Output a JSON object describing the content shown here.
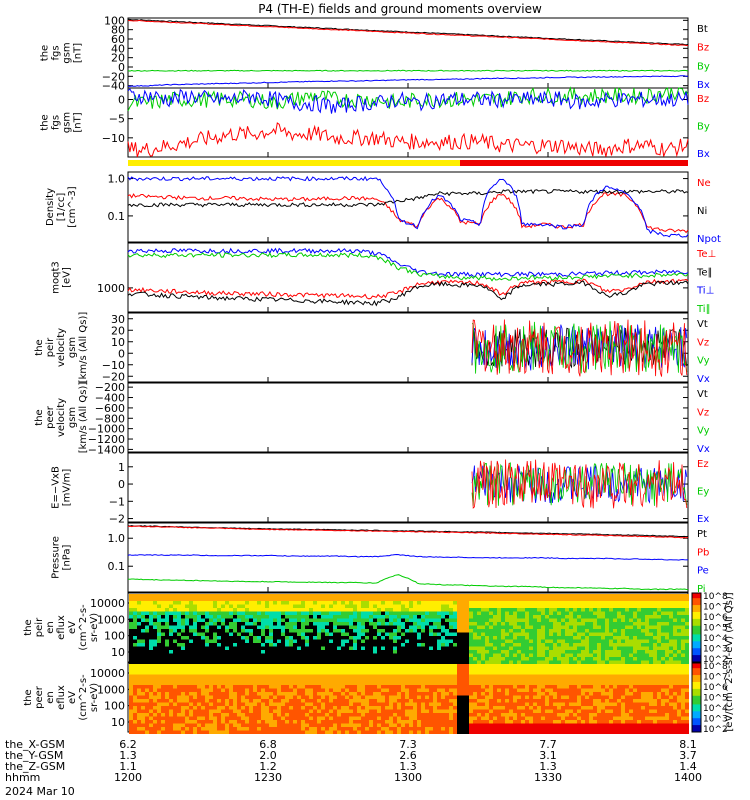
{
  "chart_data": {
    "type": "line",
    "title": "P4 (TH-E) fields and ground moments overview",
    "x_ticks": [
      "1200",
      "1230",
      "1300",
      "1330",
      "1400"
    ],
    "x_range": [
      "1200",
      "1400"
    ],
    "panels": [
      {
        "id": "fgs-gsm",
        "ylabel": [
          "the",
          "fgs",
          "gsm",
          "[nT]"
        ],
        "yticks": [
          "100",
          "80",
          "60",
          "40",
          "20",
          "0",
          "−20",
          "−40"
        ],
        "ylim": [
          -45,
          105
        ],
        "series": [
          {
            "name": "Bt",
            "color": "#000000",
            "values": [
              102,
              100,
              98,
              96,
              94,
              92,
              90,
              88,
              86,
              84,
              82,
              80,
              78,
              76,
              74,
              72,
              70,
              68,
              66,
              64,
              62,
              60,
              58,
              56,
              54,
              52,
              50,
              48
            ]
          },
          {
            "name": "Bz",
            "color": "#ff0000",
            "values": [
              100,
              98,
              96,
              94,
              92,
              90,
              88,
              86,
              84,
              82,
              80,
              78,
              76,
              74,
              72,
              70,
              68,
              66,
              64,
              62,
              60,
              58,
              56,
              54,
              52,
              50,
              48,
              46
            ]
          },
          {
            "name": "By",
            "color": "#00cc00",
            "values": [
              -8,
              -8,
              -8,
              -8,
              -8,
              -8,
              -8,
              -8,
              -8,
              -8,
              -8,
              -8,
              -8,
              -8,
              -8,
              -8,
              -8,
              -8,
              -8,
              -8,
              -8,
              -8,
              -8,
              -8,
              -8,
              -8,
              -8,
              -8
            ]
          },
          {
            "name": "Bx",
            "color": "#0000ff",
            "values": [
              -41,
              -40,
              -38,
              -37,
              -36,
              -35,
              -34,
              -33,
              -32,
              -31,
              -30,
              -30,
              -29,
              -28,
              -27,
              -27,
              -26,
              -25,
              -24,
              -24,
              -23,
              -22,
              -22,
              -21,
              -21,
              -20,
              -20,
              -19
            ]
          }
        ]
      },
      {
        "id": "fgs-dsl",
        "ylabel": [
          "the",
          "fgs",
          "gsm",
          "[nT]"
        ],
        "yticks": [
          "0",
          "−5",
          "−10"
        ],
        "ylim": [
          -15,
          3
        ],
        "series": [
          {
            "name": "Bz",
            "color": "#ff0000",
            "values": [
              -13,
              -13,
              -12,
              -11,
              -10,
              -9,
              -9,
              -8,
              -9,
              -9,
              -10,
              -10,
              -10,
              -11,
              -11,
              -11,
              -11,
              -11,
              -12,
              -12,
              -12,
              -12,
              -13,
              -13,
              -12,
              -12,
              -13,
              -12
            ]
          },
          {
            "name": "By",
            "color": "#00cc00",
            "values": [
              -1,
              -1,
              0,
              0,
              0,
              0,
              0,
              -1,
              0,
              1,
              0,
              0,
              0,
              -1,
              0,
              0,
              0,
              0,
              0,
              1,
              1,
              1,
              1,
              1,
              1,
              1,
              2,
              2
            ]
          },
          {
            "name": "Bx",
            "color": "#0000ff",
            "values": [
              1,
              1,
              0,
              1,
              0,
              0,
              1,
              0,
              -1,
              -1,
              -2,
              -1,
              -1,
              0,
              -1,
              0,
              0,
              0,
              0,
              0,
              0,
              0,
              -1,
              0,
              0,
              0,
              0,
              0
            ]
          }
        ]
      },
      {
        "id": "density",
        "ylabel": [
          "Density",
          "[1/cc]",
          "[cm^-3]"
        ],
        "yticks": [
          "1.0",
          "0.1"
        ],
        "ylim": [
          0.02,
          1.5
        ],
        "log": true,
        "series": [
          {
            "name": "Ne",
            "color": "#ff0000",
            "values": [
              0.35,
              0.33,
              0.32,
              0.3,
              0.3,
              0.3,
              0.29,
              0.28,
              0.28,
              0.28,
              0.3,
              0.3,
              0.28,
              0.08,
              0.05,
              0.3,
              0.07,
              0.06,
              0.4,
              0.05,
              0.06,
              0.05,
              0.06,
              0.4,
              0.35,
              0.05,
              0.04,
              0.04
            ]
          },
          {
            "name": "Ni",
            "color": "#000000",
            "values": [
              0.2,
              0.2,
              0.2,
              0.2,
              0.2,
              0.2,
              0.2,
              0.2,
              0.2,
              0.2,
              0.2,
              0.2,
              0.2,
              0.25,
              0.3,
              0.4,
              0.4,
              0.4,
              0.45,
              0.45,
              0.45,
              0.45,
              0.45,
              0.45,
              0.45,
              0.45,
              0.45,
              0.45
            ]
          },
          {
            "name": "Npot",
            "color": "#0000ff",
            "values": [
              1.0,
              1.0,
              1.0,
              1.0,
              1.0,
              1.0,
              1.0,
              1.0,
              1.0,
              1.0,
              1.0,
              1.0,
              1.0,
              0.08,
              0.05,
              0.35,
              0.08,
              0.06,
              1.0,
              0.06,
              0.06,
              0.05,
              0.06,
              0.6,
              0.4,
              0.04,
              0.03,
              0.03
            ]
          }
        ]
      },
      {
        "id": "temperature",
        "ylabel": [
          "moqt3",
          "[eV]"
        ],
        "yticks": [
          "1000"
        ],
        "ylim": [
          200,
          20000
        ],
        "log": true,
        "series": [
          {
            "name": "Te⊥",
            "color": "#ff0000",
            "values": [
              900,
              850,
              800,
              760,
              720,
              700,
              680,
              660,
              640,
              620,
              600,
              580,
              560,
              700,
              1300,
              1500,
              1400,
              1400,
              600,
              1400,
              1500,
              1500,
              1600,
              800,
              900,
              1500,
              1600,
              1600
            ]
          },
          {
            "name": "Te∥",
            "color": "#000000",
            "values": [
              700,
              650,
              600,
              560,
              520,
              500,
              480,
              460,
              440,
              420,
              400,
              380,
              360,
              500,
              1100,
              1300,
              1200,
              1200,
              400,
              1200,
              1300,
              1300,
              1400,
              600,
              700,
              1300,
              1400,
              1400
            ]
          },
          {
            "name": "Ti⊥",
            "color": "#0000ff",
            "values": [
              12000,
              12000,
              12000,
              12000,
              12000,
              12000,
              12000,
              12000,
              12000,
              12000,
              12000,
              12000,
              10000,
              5000,
              3000,
              2600,
              2500,
              2500,
              2500,
              2500,
              2500,
              2500,
              2600,
              2700,
              2800,
              2800,
              2900,
              3000
            ]
          },
          {
            "name": "Ti∥",
            "color": "#00cc00",
            "values": [
              9000,
              9000,
              9000,
              9000,
              9000,
              9000,
              9000,
              9000,
              9000,
              9000,
              9000,
              9000,
              8000,
              4000,
              2500,
              2200,
              2000,
              2000,
              1800,
              2000,
              2000,
              2000,
              2100,
              2200,
              2300,
              2300,
              2400,
              2500
            ]
          }
        ]
      },
      {
        "id": "peir-velocity",
        "ylabel": [
          "the",
          "peir",
          "velocity",
          "gsm",
          "[km/s (All Qs)]"
        ],
        "yticks": [
          "30",
          "20",
          "10",
          "0",
          "−10",
          "−20"
        ],
        "ylim": [
          -25,
          35
        ],
        "series": [
          {
            "name": "Vt",
            "color": "#000000"
          },
          {
            "name": "Vz",
            "color": "#ff0000"
          },
          {
            "name": "Vy",
            "color": "#00cc00"
          },
          {
            "name": "Vx",
            "color": "#0000ff"
          }
        ]
      },
      {
        "id": "peer-velocity",
        "ylabel": [
          "the",
          "peer",
          "velocity",
          "gsm",
          "[km/s (All Qs)]"
        ],
        "yticks": [
          "−200",
          "−400",
          "−600",
          "−800",
          "−1000",
          "−1200",
          "−1400"
        ],
        "ylim": [
          -1450,
          -120
        ],
        "series": [
          {
            "name": "Vt",
            "color": "#000000"
          },
          {
            "name": "Vz",
            "color": "#ff0000"
          },
          {
            "name": "Vy",
            "color": "#00cc00"
          },
          {
            "name": "Vx",
            "color": "#0000ff"
          }
        ]
      },
      {
        "id": "efield",
        "ylabel": [
          "E=−VxB",
          "[mV/m]"
        ],
        "yticks": [
          "1",
          "0",
          "−1",
          "−2"
        ],
        "ylim": [
          -2.2,
          1.8
        ],
        "series": [
          {
            "name": "Ez",
            "color": "#ff0000"
          },
          {
            "name": "Ey",
            "color": "#00cc00"
          },
          {
            "name": "Ex",
            "color": "#0000ff"
          }
        ]
      },
      {
        "id": "pressure",
        "ylabel": [
          "Pressure",
          "[nPa]"
        ],
        "yticks": [
          "1.0",
          "0.1"
        ],
        "ylim": [
          0.012,
          3.5
        ],
        "log": true,
        "series": [
          {
            "name": "Pt",
            "color": "#000000",
            "values": [
              2.8,
              2.7,
              2.6,
              2.5,
              2.4,
              2.3,
              2.2,
              2.15,
              2.1,
              2.05,
              2.0,
              1.95,
              1.9,
              1.85,
              1.8,
              1.75,
              1.7,
              1.65,
              1.6,
              1.55,
              1.5,
              1.45,
              1.4,
              1.35,
              1.3,
              1.25,
              1.2,
              1.15
            ]
          },
          {
            "name": "Pb",
            "color": "#ff0000",
            "values": [
              2.7,
              2.6,
              2.5,
              2.4,
              2.3,
              2.2,
              2.1,
              2.05,
              2.0,
              1.95,
              1.9,
              1.85,
              1.8,
              1.75,
              1.7,
              1.65,
              1.6,
              1.55,
              1.5,
              1.45,
              1.4,
              1.35,
              1.3,
              1.25,
              1.2,
              1.15,
              1.1,
              1.05
            ]
          },
          {
            "name": "Pe",
            "color": "#0000ff",
            "values": [
              0.25,
              0.25,
              0.25,
              0.25,
              0.24,
              0.24,
              0.24,
              0.24,
              0.23,
              0.23,
              0.23,
              0.22,
              0.22,
              0.26,
              0.22,
              0.21,
              0.21,
              0.2,
              0.2,
              0.2,
              0.2,
              0.19,
              0.19,
              0.19,
              0.18,
              0.18,
              0.17,
              0.17
            ]
          },
          {
            "name": "Pi",
            "color": "#00cc00",
            "values": [
              0.035,
              0.033,
              0.032,
              0.031,
              0.03,
              0.029,
              0.028,
              0.028,
              0.027,
              0.027,
              0.026,
              0.026,
              0.025,
              0.05,
              0.024,
              0.022,
              0.021,
              0.02,
              0.019,
              0.019,
              0.018,
              0.017,
              0.017,
              0.016,
              0.016,
              0.015,
              0.015,
              0.015
            ]
          }
        ]
      },
      {
        "id": "peir-spectrogram",
        "type": "heatmap",
        "ylabel": [
          "the",
          "peir",
          "en",
          "eflux",
          "eV",
          "(cm^2-s-",
          "sr-eV)"
        ],
        "yticks": [
          "10000",
          "1000",
          "100",
          "10"
        ]
      },
      {
        "id": "peer-spectrogram",
        "type": "heatmap",
        "ylabel": [
          "the",
          "peer",
          "en",
          "eflux",
          "eV",
          "(cm^2-s-",
          "sr-eV)"
        ],
        "yticks": [
          "10000",
          "1000",
          "100",
          "10"
        ]
      }
    ],
    "colorbar": {
      "label": "[eV/(cm^2-s-sr-eV) (All Qs)]",
      "ticks": [
        "10^8",
        "10^7",
        "10^6",
        "10^5",
        "10^4",
        "10^3",
        "10^2"
      ]
    },
    "ephemeris": [
      {
        "label": "the_X-GSM",
        "values": [
          "6.2",
          "6.8",
          "7.3",
          "7.7",
          "8.1"
        ]
      },
      {
        "label": "the_Y-GSM",
        "values": [
          "1.3",
          "2.0",
          "2.6",
          "3.1",
          "3.7"
        ]
      },
      {
        "label": "the_Z-GSM",
        "values": [
          "1.1",
          "1.2",
          "1.3",
          "1.3",
          "1.4"
        ]
      },
      {
        "label": "hhmm",
        "values": [
          "1200",
          "1230",
          "1300",
          "1330",
          "1400"
        ]
      }
    ],
    "date": "2024 Mar 10"
  }
}
